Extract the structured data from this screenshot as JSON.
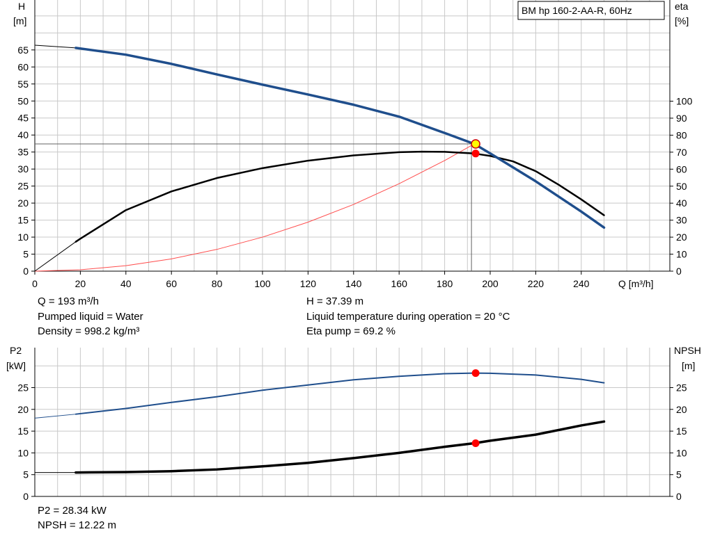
{
  "colors": {
    "background": "#ffffff",
    "grid": "#c8c8c8",
    "axis": "#000000",
    "head_curve": "#1f4e8c",
    "efficiency_curve": "#000000",
    "system_curve": "#ff4d4d",
    "operating_point": "#ff0000",
    "operating_point_head": "#ffff00",
    "power_curve": "#1f4e8c",
    "npsh_curve": "#000000"
  },
  "pump_label": "BM hp 160-2-AA-R, 60Hz",
  "info_top": {
    "left": [
      "Q = 193 m³/h",
      "Pumped liquid = Water",
      "Density = 998.2 kg/m³"
    ],
    "right": [
      "H = 37.39 m",
      "Liquid temperature during operation = 20 °C",
      "Eta pump = 69.2 %"
    ]
  },
  "info_bottom": [
    "P2 = 28.34 kW",
    "NPSH = 12.22 m"
  ],
  "chart_data": [
    {
      "type": "line",
      "xlabel": "Q [m³/h]",
      "ylabel_left": [
        "H",
        "[m]"
      ],
      "ylabel_right": [
        "eta",
        "[%]"
      ],
      "xlim": [
        0,
        250
      ],
      "ylim_left": [
        0,
        65
      ],
      "ylim_right": [
        0,
        100
      ],
      "x_ticks": [
        0,
        20,
        40,
        60,
        80,
        100,
        120,
        140,
        160,
        180,
        200,
        220,
        240
      ],
      "y_ticks_left": [
        0,
        5,
        10,
        15,
        20,
        25,
        30,
        35,
        40,
        45,
        50,
        55,
        60,
        65
      ],
      "y_ticks_right": [
        0,
        10,
        20,
        30,
        40,
        50,
        60,
        70,
        80,
        90,
        100
      ],
      "grid": true,
      "operating_point": {
        "Q": 193,
        "H": 37.39,
        "eta": 69.2
      },
      "series": [
        {
          "axis": "left",
          "points": [
            [
              0,
              66.4
            ],
            [
              18,
              65.6
            ],
            [
              40,
              63.6
            ],
            [
              60,
              60.9
            ],
            [
              80,
              57.8
            ],
            [
              100,
              54.8
            ],
            [
              120,
              51.9
            ],
            [
              140,
              48.9
            ],
            [
              160,
              45.4
            ],
            [
              180,
              40.6
            ],
            [
              193,
              37.39
            ],
            [
              200,
              34.6
            ],
            [
              220,
              26.4
            ],
            [
              240,
              17.5
            ],
            [
              250,
              12.8
            ]
          ],
          "thin_until": 18
        },
        {
          "axis": "right",
          "points": [
            [
              0,
              0
            ],
            [
              18,
              17.3
            ],
            [
              20,
              19.1
            ],
            [
              40,
              35.9
            ],
            [
              60,
              46.9
            ],
            [
              80,
              54.8
            ],
            [
              100,
              60.6
            ],
            [
              120,
              65.0
            ],
            [
              140,
              68.1
            ],
            [
              160,
              70.0
            ],
            [
              170,
              70.3
            ],
            [
              180,
              70.2
            ],
            [
              193,
              69.2
            ],
            [
              200,
              67.8
            ],
            [
              210,
              64.6
            ],
            [
              220,
              58.8
            ],
            [
              230,
              50.9
            ],
            [
              240,
              42.2
            ],
            [
              250,
              32.9
            ]
          ],
          "thin_until": 18
        },
        {
          "axis": "left",
          "points": [
            [
              0,
              0
            ],
            [
              20,
              0.4
            ],
            [
              40,
              1.6
            ],
            [
              60,
              3.6
            ],
            [
              80,
              6.4
            ],
            [
              100,
              10.0
            ],
            [
              120,
              14.4
            ],
            [
              140,
              19.6
            ],
            [
              160,
              25.7
            ],
            [
              180,
              32.5
            ],
            [
              193,
              37.39
            ]
          ]
        }
      ]
    },
    {
      "type": "line",
      "ylabel_left": [
        "P2",
        "[kW]"
      ],
      "ylabel_right": [
        "NPSH",
        "[m]"
      ],
      "xlim": [
        0,
        250
      ],
      "ylim_left": [
        0,
        30
      ],
      "ylim_right": [
        0,
        30
      ],
      "y_ticks_left": [
        0,
        5,
        10,
        15,
        20,
        25
      ],
      "y_ticks_right": [
        0,
        5,
        10,
        15,
        20,
        25
      ],
      "grid": true,
      "operating_point": {
        "Q": 193,
        "P2": 28.34,
        "NPSH": 12.22
      },
      "series": [
        {
          "axis": "left",
          "points": [
            [
              0,
              18.0
            ],
            [
              18,
              18.9
            ],
            [
              40,
              20.2
            ],
            [
              60,
              21.6
            ],
            [
              80,
              22.9
            ],
            [
              100,
              24.4
            ],
            [
              120,
              25.6
            ],
            [
              140,
              26.8
            ],
            [
              160,
              27.6
            ],
            [
              180,
              28.2
            ],
            [
              193,
              28.34
            ],
            [
              200,
              28.3
            ],
            [
              220,
              27.9
            ],
            [
              240,
              26.9
            ],
            [
              250,
              26.1
            ]
          ],
          "thin_until": 18
        },
        {
          "axis": "right",
          "points": [
            [
              0,
              5.5
            ],
            [
              18,
              5.5
            ],
            [
              40,
              5.6
            ],
            [
              60,
              5.8
            ],
            [
              80,
              6.2
            ],
            [
              100,
              6.9
            ],
            [
              120,
              7.7
            ],
            [
              140,
              8.8
            ],
            [
              160,
              10.0
            ],
            [
              180,
              11.4
            ],
            [
              193,
              12.22
            ],
            [
              200,
              12.8
            ],
            [
              220,
              14.2
            ],
            [
              240,
              16.3
            ],
            [
              250,
              17.2
            ]
          ],
          "thin_until": 18
        }
      ]
    }
  ]
}
